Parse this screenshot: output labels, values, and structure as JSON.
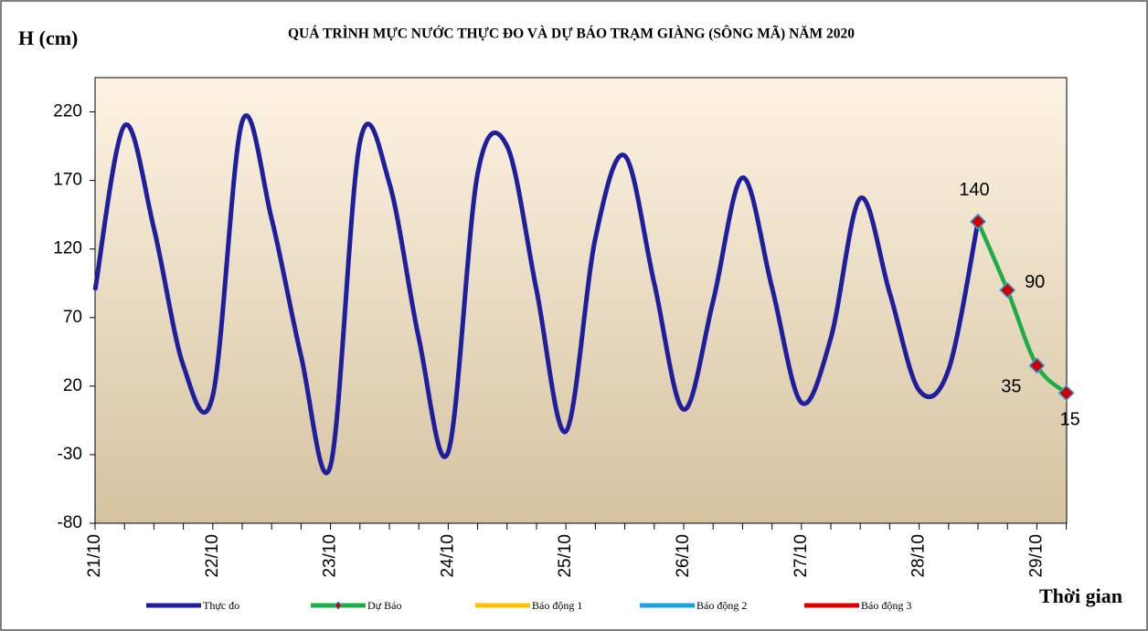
{
  "chart_data": {
    "type": "line",
    "title": "QUÁ TRÌNH MỰC NƯỚC THỰC ĐO VÀ DỰ BÁO TRẠM GIÀNG (SÔNG MÃ) NĂM 2020",
    "y_label": "H (cm)",
    "x_label": "Thời gian",
    "categories": [
      "21/10",
      null,
      null,
      null,
      "22/10",
      null,
      null,
      null,
      "23/10",
      null,
      null,
      null,
      "24/10",
      null,
      null,
      null,
      "25/10",
      null,
      null,
      null,
      "26/10",
      null,
      null,
      null,
      "27/10",
      null,
      null,
      null,
      "28/10",
      null,
      null,
      null,
      "29/10",
      null
    ],
    "series": [
      {
        "name": "Thực đo",
        "color": "#1f1f9e",
        "values": [
          90,
          210,
          135,
          35,
          13,
          213,
          142,
          42,
          -38,
          198,
          168,
          55,
          -28,
          175,
          195,
          90,
          -13,
          128,
          188,
          95,
          3,
          82,
          172,
          92,
          8,
          55,
          157,
          88,
          17,
          32,
          140,
          null,
          null,
          null
        ]
      },
      {
        "name": "Dự Báo",
        "color": "#1ead45",
        "marker_color": "#cc0000",
        "marker_edge": "#3aa0e0",
        "data_labels": true,
        "values": [
          null,
          null,
          null,
          null,
          null,
          null,
          null,
          null,
          null,
          null,
          null,
          null,
          null,
          null,
          null,
          null,
          null,
          null,
          null,
          null,
          null,
          null,
          null,
          null,
          null,
          null,
          null,
          null,
          null,
          null,
          140,
          90,
          35,
          15
        ]
      }
    ],
    "alarms": [
      {
        "name": "Báo động 1",
        "color": "#ffc000"
      },
      {
        "name": "Báo động 2",
        "color": "#1aa3e8"
      },
      {
        "name": "Báo động 3",
        "color": "#e00000"
      }
    ],
    "ylim": [
      -80,
      245
    ],
    "yticks": [
      -80,
      -30,
      20,
      70,
      120,
      170,
      220
    ],
    "grid": false
  }
}
